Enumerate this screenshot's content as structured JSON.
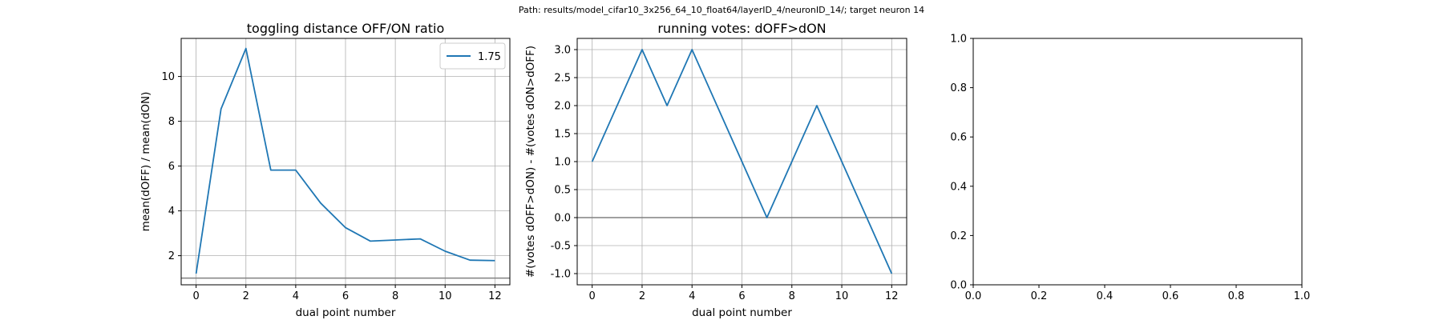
{
  "suptitle": "Path: results/model_cifar10_3x256_64_10_float64/layerID_4/neuronID_14/; target neuron 14",
  "chart_data": [
    {
      "type": "line",
      "title": "toggling distance OFF/ON ratio",
      "xlabel": "dual point number",
      "ylabel": "mean(dOFF) / mean(dON)",
      "xlim": [
        -0.6,
        12.6
      ],
      "ylim": [
        0.7,
        11.7
      ],
      "xticks": [
        0,
        2,
        4,
        6,
        8,
        10,
        12
      ],
      "yticks": [
        2,
        4,
        6,
        8,
        10
      ],
      "grid": true,
      "hline": 1.0,
      "legend": "top-right",
      "color": "#1f77b4",
      "series": [
        {
          "name": "1.75",
          "x": [
            0,
            1,
            2,
            3,
            4,
            5,
            6,
            7,
            8,
            9,
            10,
            11,
            12
          ],
          "y": [
            1.2,
            8.55,
            11.25,
            5.82,
            5.82,
            4.35,
            3.25,
            2.65,
            2.7,
            2.75,
            2.2,
            1.8,
            1.78
          ]
        }
      ]
    },
    {
      "type": "line",
      "title": "running votes: dOFF>dON",
      "xlabel": "dual point number",
      "ylabel": "#(votes dOFF>dON) - #(votes dON>dOFF)",
      "xlim": [
        -0.6,
        12.6
      ],
      "ylim": [
        -1.2,
        3.2
      ],
      "xticks": [
        0,
        2,
        4,
        6,
        8,
        10,
        12
      ],
      "yticks": [
        "-1.0",
        "-0.5",
        "0.0",
        "0.5",
        "1.0",
        "1.5",
        "2.0",
        "2.5",
        "3.0"
      ],
      "grid": true,
      "hline": 0.0,
      "color": "#1f77b4",
      "series": [
        {
          "x": [
            0,
            1,
            2,
            3,
            4,
            5,
            6,
            7,
            8,
            9,
            10,
            11,
            12
          ],
          "y": [
            1,
            2,
            3,
            2,
            3,
            2,
            1,
            0,
            1,
            2,
            1,
            0,
            -1
          ]
        }
      ]
    },
    {
      "type": "line",
      "title": "",
      "xlim": [
        0,
        1
      ],
      "ylim": [
        0,
        1
      ],
      "xticks": [
        "0.0",
        "0.2",
        "0.4",
        "0.6",
        "0.8",
        "1.0"
      ],
      "yticks": [
        "0.0",
        "0.2",
        "0.4",
        "0.6",
        "0.8",
        "1.0"
      ],
      "grid": false,
      "series": []
    }
  ]
}
